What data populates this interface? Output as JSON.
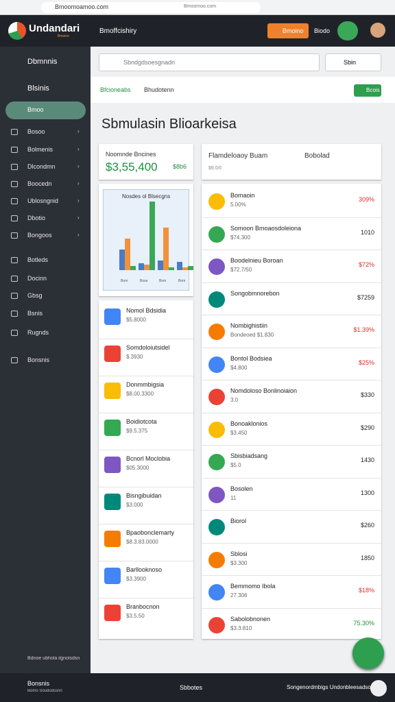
{
  "browser": {
    "url": "Bmoomoamoo.com",
    "center": "Bmoomoo.com"
  },
  "header": {
    "brand": "Undandari",
    "brand_sub": "Bmoino",
    "section": "Bmoffcishiry",
    "button": "Bmoino",
    "user": "Biodo"
  },
  "sidebar": {
    "top": "Dbmnnis",
    "group": "Blsinis",
    "active": "Bmoo",
    "items": [
      "Bosoo",
      "Bolmenis",
      "Dlcondmn",
      "Boocedn",
      "Ublosngnid",
      "Dbotio",
      "Bongoos",
      "Botleds",
      "Docinn",
      "Gbsg",
      "Bsnis",
      "Rugnds",
      "Bonsnis"
    ],
    "footer": "Bdnoe ubhola ilgnolsdsn"
  },
  "search": {
    "placeholder": "Sbndgdsoesgnadn",
    "button": "Sbin"
  },
  "tabs": [
    "Bfcioneabs",
    "Bhudotenn"
  ],
  "action": "Bcois",
  "title": "Sbmulasin Blioarkeisa",
  "summary": {
    "label": "Noomnde Bncines",
    "value": "$3,55,400",
    "delta": "$8b6"
  },
  "chart": {
    "title": "Nosdes ol Blsecgns",
    "ylim": [
      0,
      100
    ],
    "categories": [
      "Bom",
      "Bosa",
      "Bom",
      "Bom"
    ],
    "series": [
      {
        "color": "#4a7bc4",
        "values": [
          30,
          10,
          14,
          12
        ]
      },
      {
        "color": "#f0923a",
        "values": [
          46,
          8,
          62,
          4
        ]
      },
      {
        "color": "#3aa856",
        "values": [
          6,
          100,
          4,
          6
        ]
      }
    ]
  },
  "left_items": [
    {
      "name": "Nomol Bdsidia",
      "value": "$5.8000"
    },
    {
      "name": "Somdoloiutsidel",
      "value": "$.3930"
    },
    {
      "name": "Donmmbigsia",
      "value": "$8.00.3300"
    },
    {
      "name": "Boidiotcota",
      "value": "$9.5.375"
    },
    {
      "name": "Bcnorl Moclobia",
      "value": "$05.3000"
    },
    {
      "name": "Bisngibuidan",
      "value": "$3.000"
    },
    {
      "name": "Bpaobonclemarty",
      "value": "$8.3.83.0000"
    },
    {
      "name": "Barllooknoso",
      "value": "$3.3900"
    },
    {
      "name": "Branbocnon",
      "value": "$3.5.50"
    }
  ],
  "right_header": {
    "left": "Flamdeloaoy Buam",
    "right": "Bobolad",
    "sub": "$9.0/0"
  },
  "right_items": [
    {
      "name": "Bomaoin",
      "sub": "5.00%",
      "value": "309%",
      "color": "#d93025"
    },
    {
      "name": "Somoon Bmoaosdoleiona",
      "sub": "$74.300",
      "value": "1010",
      "color": "#222222"
    },
    {
      "name": "Boodelnieu Boroan",
      "sub": "$72.7/50",
      "value": "$72%",
      "color": "#d93025"
    },
    {
      "name": "Songobmnorebon",
      "value": "$7259",
      "color": "#222222"
    },
    {
      "name": "Nombighistiin",
      "sub": "Bondeoed $1.830",
      "value": "$1.39%",
      "color": "#d93025"
    },
    {
      "name": "Bontol Bodsiea",
      "sub": "$4.800",
      "value": "$25%",
      "color": "#d93025"
    },
    {
      "name": "Nomdoloso Bonlinoiaion",
      "sub": "3.0",
      "value": "$330",
      "color": "#222222"
    },
    {
      "name": "Bonoaklonios",
      "sub": "$3.450",
      "value": "$290",
      "color": "#222222"
    },
    {
      "name": "Sbisbiadsang",
      "sub": "$5.0",
      "value": "1430",
      "color": "#222222"
    },
    {
      "name": "Bosolen",
      "sub": "11",
      "value": "1300",
      "color": "#222222"
    },
    {
      "name": "Biorol",
      "value": "$260",
      "color": "#222222"
    },
    {
      "name": "Sblosi",
      "sub": "$3.300",
      "value": "1850",
      "color": "#222222"
    },
    {
      "name": "Bemmomo Ibola",
      "sub": "27.306",
      "value": "$18%",
      "color": "#d93025"
    },
    {
      "name": "Sabolobnonen",
      "sub": "$3.3.810",
      "value": "75.30%",
      "color": "#1e8e3e"
    }
  ],
  "bottom": {
    "left": "Bonsnis",
    "left_sub": "Bomo Soudodssnn",
    "center": "Sbbotes",
    "right": "Songenordmbigs Undonbleesadson"
  }
}
